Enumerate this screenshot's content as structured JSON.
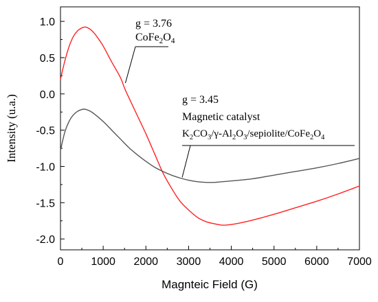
{
  "chart_data": {
    "type": "line",
    "xlabel": "Magnteic Field (G)",
    "ylabel": "Intensity (u.a.)",
    "xlim": [
      0,
      7000
    ],
    "ylim": [
      -2.15,
      1.2
    ],
    "xticks": [
      0,
      1000,
      2000,
      3000,
      4000,
      5000,
      6000,
      7000
    ],
    "xtick_labels": [
      "0",
      "1000",
      "2000",
      "3000",
      "4000",
      "5000",
      "6000",
      "7000"
    ],
    "yticks": [
      1.0,
      0.5,
      0.0,
      -0.5,
      -1.0,
      -1.5,
      -2.0
    ],
    "ytick_labels": [
      "1.0",
      "0.5",
      "0.0",
      "-0.5",
      "-1.0",
      "-1.5",
      "-2.0"
    ],
    "grid": false,
    "series": [
      {
        "color": "#ff2020",
        "x": [
          0,
          100,
          200,
          300,
          400,
          500,
          550,
          600,
          700,
          800,
          900,
          1000,
          1200,
          1400,
          1500,
          1600,
          1800,
          2000,
          2200,
          2400,
          2600,
          2800,
          3000,
          3200,
          3400,
          3600,
          3800,
          4000,
          4200,
          4500,
          5000,
          5500,
          6000,
          6500,
          7000
        ],
        "values": [
          0.2,
          0.45,
          0.65,
          0.79,
          0.87,
          0.91,
          0.92,
          0.92,
          0.89,
          0.83,
          0.75,
          0.66,
          0.44,
          0.23,
          0.08,
          -0.05,
          -0.3,
          -0.55,
          -0.82,
          -1.09,
          -1.3,
          -1.48,
          -1.6,
          -1.7,
          -1.76,
          -1.79,
          -1.81,
          -1.8,
          -1.78,
          -1.74,
          -1.66,
          -1.57,
          -1.48,
          -1.38,
          -1.27
        ]
      },
      {
        "color": "#555555",
        "x": [
          0,
          100,
          200,
          300,
          400,
          500,
          550,
          600,
          700,
          800,
          1000,
          1200,
          1400,
          1600,
          1800,
          2000,
          2200,
          2400,
          2600,
          2800,
          3000,
          3200,
          3400,
          3600,
          3800,
          4000,
          4500,
          5000,
          5500,
          6000,
          6500,
          7000
        ],
        "values": [
          -0.78,
          -0.53,
          -0.38,
          -0.29,
          -0.24,
          -0.215,
          -0.21,
          -0.215,
          -0.24,
          -0.28,
          -0.38,
          -0.5,
          -0.62,
          -0.74,
          -0.84,
          -0.93,
          -1.01,
          -1.07,
          -1.12,
          -1.16,
          -1.19,
          -1.21,
          -1.22,
          -1.22,
          -1.21,
          -1.2,
          -1.17,
          -1.12,
          -1.07,
          -1.02,
          -0.96,
          -0.89
        ]
      }
    ],
    "annotations": [
      {
        "lines": [
          "g = 3.76",
          "CoFe₂O₄"
        ],
        "arrow_to": [
          1520,
          0.15
        ]
      },
      {
        "lines": [
          "g = 3.45",
          "Magnetic catalyst",
          "K₂CO₃/γ-Al₂O₃/sepiolite/CoFe₂O₄"
        ],
        "arrow_to": [
          2850,
          -1.15
        ]
      }
    ]
  }
}
